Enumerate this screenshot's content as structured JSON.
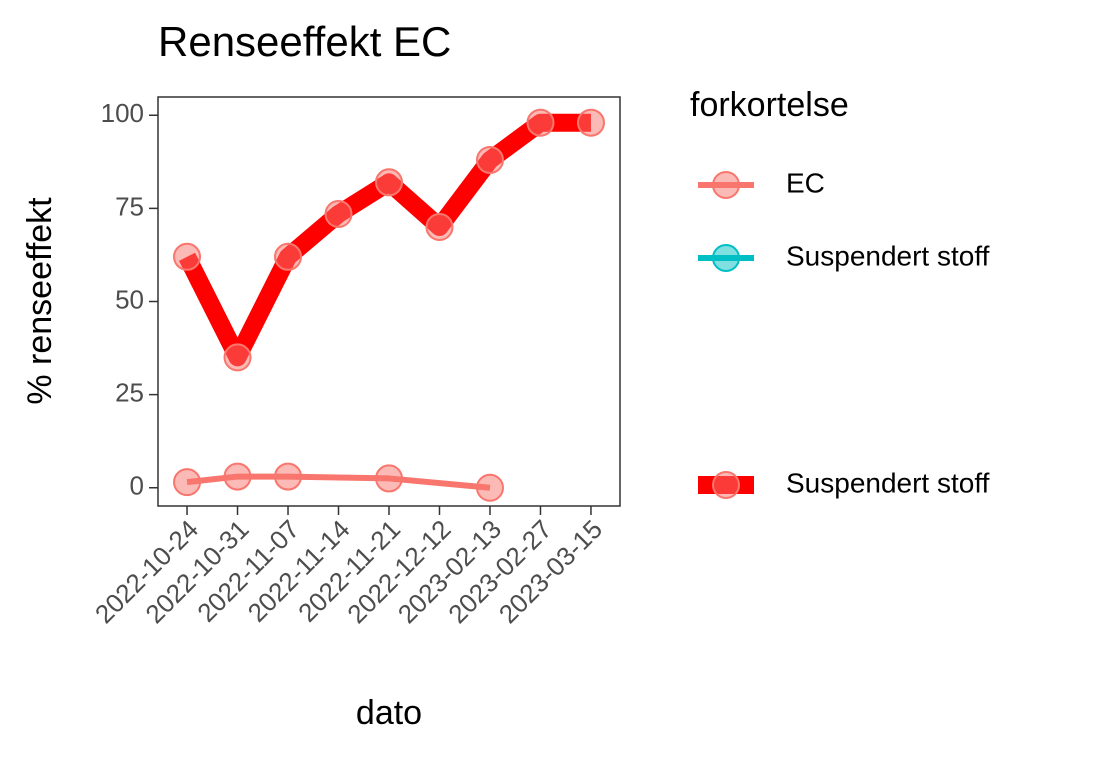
{
  "chart_data": {
    "type": "line",
    "title": "Renseeffekt EC",
    "x_label": "dato",
    "y_label": "% renseeffekt",
    "categories": [
      "2022-10-24",
      "2022-10-31",
      "2022-11-07",
      "2022-11-14",
      "2022-11-21",
      "2022-12-12",
      "2023-02-13",
      "2023-02-27",
      "2023-03-15"
    ],
    "series": [
      {
        "name": "EC",
        "color": "#F8766D",
        "point_color": "#F8766D",
        "line_width": 6,
        "x": [
          "2022-10-24",
          "2022-10-31",
          "2022-11-07",
          "2022-11-21",
          "2023-02-13"
        ],
        "values": [
          1.5,
          3,
          3,
          2.5,
          0
        ]
      },
      {
        "name": "Suspendert stoff",
        "color": "#FF0000",
        "point_color": "#F8766D",
        "line_width": 18,
        "x": [
          "2022-10-24",
          "2022-10-31",
          "2022-11-07",
          "2022-11-14",
          "2022-11-21",
          "2022-12-12",
          "2023-02-13",
          "2023-02-27",
          "2023-03-15"
        ],
        "values": [
          62,
          35,
          62,
          73.5,
          82,
          70,
          88,
          98,
          98
        ]
      }
    ],
    "ylim": [
      -4.9,
      104.9
    ],
    "yticks": [
      0,
      25,
      50,
      75,
      100
    ],
    "legend": {
      "title": "forkortelse",
      "entries": [
        {
          "name": "EC",
          "color": "#F8766D",
          "line_width": 6
        },
        {
          "name": "Suspendert stoff",
          "color": "#00BFC4",
          "line_width": 6
        },
        {
          "name": "Suspendert stoff",
          "color": "#FF0000",
          "line_width": 18
        }
      ]
    }
  }
}
